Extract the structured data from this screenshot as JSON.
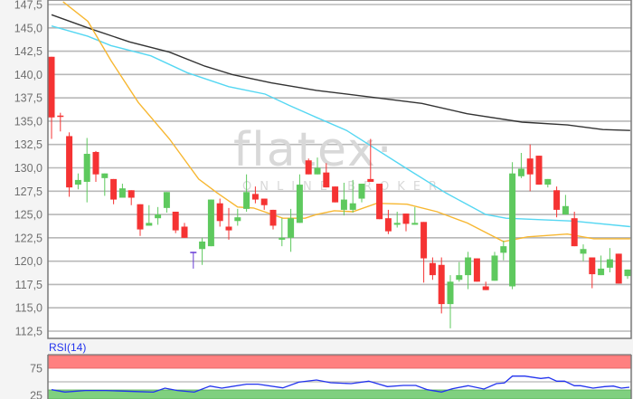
{
  "chart_data": [
    {
      "type": "candlestick",
      "y_tick_labels": [
        "147,5",
        "145,0",
        "142,5",
        "140,0",
        "137,5",
        "135,0",
        "132,5",
        "130,0",
        "127,5",
        "125,0",
        "122,5",
        "120,0",
        "117,5",
        "115,0",
        "112,5"
      ],
      "ylim": [
        112.5,
        147.5
      ],
      "grid": true,
      "colors": {
        "up": "#5ec95e",
        "down": "#f53333",
        "highlight": "#6a3dd6",
        "ma_short": "#f7b731",
        "ma_mid": "#55d7f2",
        "ma_long": "#333333",
        "grid": "#b8b8b8"
      },
      "highlight_index": 16,
      "candles_ohlc": [
        [
          141.9,
          141.9,
          133.1,
          135.4
        ],
        [
          135.6,
          135.9,
          133.9,
          135.5
        ],
        [
          133.4,
          133.8,
          126.9,
          127.9
        ],
        [
          128.2,
          129.4,
          127.7,
          128.7
        ],
        [
          128.5,
          133.2,
          126.3,
          131.5
        ],
        [
          131.7,
          131.8,
          128.5,
          129.3
        ],
        [
          128.9,
          129.4,
          127.0,
          129.4
        ],
        [
          128.8,
          128.8,
          126.1,
          126.6
        ],
        [
          126.8,
          128.3,
          126.8,
          127.8
        ],
        [
          127.6,
          127.6,
          126.0,
          126.8
        ],
        [
          126.1,
          126.1,
          122.7,
          123.4
        ],
        [
          123.8,
          126.0,
          123.8,
          124.1
        ],
        [
          124.6,
          125.8,
          123.9,
          125.0
        ],
        [
          125.7,
          127.4,
          125.2,
          127.4
        ],
        [
          125.3,
          125.3,
          123.0,
          123.3
        ],
        [
          123.7,
          124.1,
          122.5,
          122.5
        ],
        [
          121.0,
          121.0,
          119.2,
          121.0
        ],
        [
          121.3,
          122.5,
          119.6,
          122.1
        ],
        [
          121.6,
          126.6,
          121.6,
          126.6
        ],
        [
          126.2,
          126.7,
          123.7,
          124.3
        ],
        [
          123.7,
          125.7,
          122.3,
          123.3
        ],
        [
          124.3,
          125.6,
          123.8,
          124.7
        ],
        [
          125.6,
          129.3,
          125.3,
          127.4
        ],
        [
          127.2,
          128.0,
          126.2,
          126.6
        ],
        [
          126.7,
          126.7,
          125.5,
          126.0
        ],
        [
          125.5,
          125.5,
          123.4,
          123.8
        ],
        [
          122.3,
          124.6,
          121.6,
          122.5
        ],
        [
          122.5,
          125.6,
          121.0,
          124.6
        ],
        [
          124.1,
          129.3,
          124.1,
          128.2
        ],
        [
          130.8,
          131.0,
          129.3,
          129.3
        ],
        [
          129.3,
          131.1,
          129.3,
          130.0
        ],
        [
          129.5,
          130.5,
          127.9,
          127.9
        ],
        [
          128.0,
          128.0,
          126.3,
          126.3
        ],
        [
          125.5,
          128.4,
          124.9,
          126.6
        ],
        [
          125.5,
          128.7,
          125.2,
          126.2
        ],
        [
          126.7,
          128.3,
          126.3,
          128.3
        ],
        [
          128.8,
          133.1,
          128.5,
          128.5
        ],
        [
          128.3,
          128.3,
          124.5,
          124.5
        ],
        [
          124.6,
          125.5,
          122.9,
          123.2
        ],
        [
          123.9,
          125.3,
          123.6,
          124.1
        ],
        [
          125.1,
          125.1,
          123.2,
          124.0
        ],
        [
          123.9,
          125.8,
          123.9,
          124.1
        ],
        [
          124.2,
          124.2,
          117.7,
          120.3
        ],
        [
          119.8,
          120.4,
          118.0,
          118.5
        ],
        [
          119.6,
          120.4,
          114.4,
          115.4
        ],
        [
          115.4,
          118.5,
          112.8,
          117.8
        ],
        [
          118.0,
          119.9,
          117.8,
          118.5
        ],
        [
          118.5,
          121.0,
          117.0,
          120.4
        ],
        [
          120.3,
          120.3,
          117.8,
          117.8
        ],
        [
          117.3,
          117.8,
          116.9,
          116.9
        ],
        [
          117.9,
          121.0,
          117.9,
          120.6
        ],
        [
          120.9,
          122.2,
          120.1,
          121.6
        ],
        [
          117.3,
          130.6,
          117.0,
          129.4
        ],
        [
          129.1,
          131.6,
          128.9,
          129.9
        ],
        [
          131.0,
          132.5,
          127.5,
          129.3
        ],
        [
          131.3,
          131.3,
          128.2,
          128.2
        ],
        [
          128.2,
          128.8,
          127.9,
          128.8
        ],
        [
          127.6,
          128.0,
          124.7,
          125.5
        ],
        [
          125.0,
          127.1,
          125.0,
          125.9
        ],
        [
          124.6,
          125.3,
          121.6,
          121.6
        ],
        [
          120.8,
          121.8,
          120.0,
          121.3
        ],
        [
          120.4,
          120.4,
          117.1,
          118.6
        ],
        [
          118.5,
          120.6,
          118.5,
          119.2
        ],
        [
          119.3,
          121.4,
          118.8,
          120.2
        ],
        [
          120.8,
          120.8,
          117.6,
          117.6
        ],
        [
          118.4,
          119.1,
          118.1,
          119.1
        ]
      ],
      "moving_averages": {
        "long": [
          [
            0,
            146.4
          ],
          [
            4.4,
            144.9
          ],
          [
            8.8,
            143.5
          ],
          [
            13.3,
            142.4
          ],
          [
            17.3,
            140.9
          ],
          [
            20.4,
            140.0
          ],
          [
            24.8,
            139.1
          ],
          [
            29.9,
            138.3
          ],
          [
            41.8,
            136.9
          ],
          [
            46.9,
            135.8
          ],
          [
            53.1,
            134.9
          ],
          [
            58.2,
            134.6
          ],
          [
            62.2,
            134.1
          ],
          [
            65.3,
            134.0
          ]
        ],
        "mid": [
          [
            0,
            145.2
          ],
          [
            4.1,
            144.1
          ],
          [
            6.7,
            143.1
          ],
          [
            11.2,
            142.0
          ],
          [
            15.3,
            140.2
          ],
          [
            20,
            138.7
          ],
          [
            24.1,
            137.9
          ],
          [
            26.8,
            136.7
          ],
          [
            29.9,
            135.4
          ],
          [
            33.3,
            134.0
          ],
          [
            40.1,
            129.9
          ],
          [
            44.5,
            127.3
          ],
          [
            49,
            125.0
          ],
          [
            51.3,
            124.6
          ],
          [
            58.8,
            124.3
          ],
          [
            65.3,
            123.7
          ]
        ],
        "short": [
          [
            1.3,
            147.8
          ],
          [
            4.1,
            145.7
          ],
          [
            6.7,
            141.5
          ],
          [
            9.8,
            137.0
          ],
          [
            13.3,
            133.1
          ],
          [
            16.6,
            128.8
          ],
          [
            18.7,
            127.3
          ],
          [
            21,
            125.8
          ],
          [
            22.8,
            125.7
          ],
          [
            26.1,
            124.6
          ],
          [
            28.6,
            124.6
          ],
          [
            29.9,
            125.0
          ],
          [
            31.9,
            125.4
          ],
          [
            34,
            125.3
          ],
          [
            36.7,
            126.2
          ],
          [
            40.1,
            126.1
          ],
          [
            43.5,
            125.3
          ],
          [
            46.9,
            124.1
          ],
          [
            51,
            122.1
          ],
          [
            53.7,
            122.6
          ],
          [
            58.2,
            122.9
          ],
          [
            61.2,
            122.4
          ],
          [
            65.3,
            122.4
          ]
        ]
      }
    },
    {
      "type": "line",
      "title": "RSI(14)",
      "y_tick_labels": [
        "75",
        "25"
      ],
      "bands": {
        "overbought_from": 75,
        "oversold_to": 35,
        "midline": 50
      },
      "colors": {
        "line": "#2233ee",
        "overbought": "#ff8080",
        "oversold": "#7fd07f"
      },
      "points": [
        [
          0,
          35.5
        ],
        [
          1.5,
          31.1
        ],
        [
          3.8,
          34
        ],
        [
          6.1,
          34
        ],
        [
          7.9,
          33
        ],
        [
          9.7,
          32
        ],
        [
          11.5,
          31
        ],
        [
          12.8,
          38.3
        ],
        [
          14.2,
          34
        ],
        [
          16.1,
          31
        ],
        [
          17.9,
          42.2
        ],
        [
          19.2,
          38.3
        ],
        [
          22,
          45.6
        ],
        [
          23.3,
          45.6
        ],
        [
          26.1,
          38.9
        ],
        [
          27.9,
          49.4
        ],
        [
          29.9,
          53.3
        ],
        [
          31.5,
          48.3
        ],
        [
          33.8,
          46.7
        ],
        [
          35.8,
          51.1
        ],
        [
          37.9,
          41.1
        ],
        [
          39.7,
          43.3
        ],
        [
          41.1,
          43.3
        ],
        [
          42.4,
          35.5
        ],
        [
          44,
          31.1
        ],
        [
          45.2,
          37.2
        ],
        [
          47,
          42.8
        ],
        [
          48.8,
          36.7
        ],
        [
          50.2,
          46.7
        ],
        [
          51.1,
          47.8
        ],
        [
          52,
          60.5
        ],
        [
          53.4,
          60.5
        ],
        [
          55.2,
          56.1
        ],
        [
          56.1,
          57.8
        ],
        [
          57,
          51.1
        ],
        [
          57.9,
          51.1
        ],
        [
          59,
          42.8
        ],
        [
          59.7,
          42.8
        ],
        [
          61.1,
          38.3
        ],
        [
          62.4,
          41.1
        ],
        [
          63.4,
          42.2
        ],
        [
          64.3,
          38.3
        ],
        [
          65.2,
          40
        ]
      ]
    }
  ],
  "watermark": {
    "logo": "flatex",
    "tagline": "ONLINE BROKER"
  }
}
